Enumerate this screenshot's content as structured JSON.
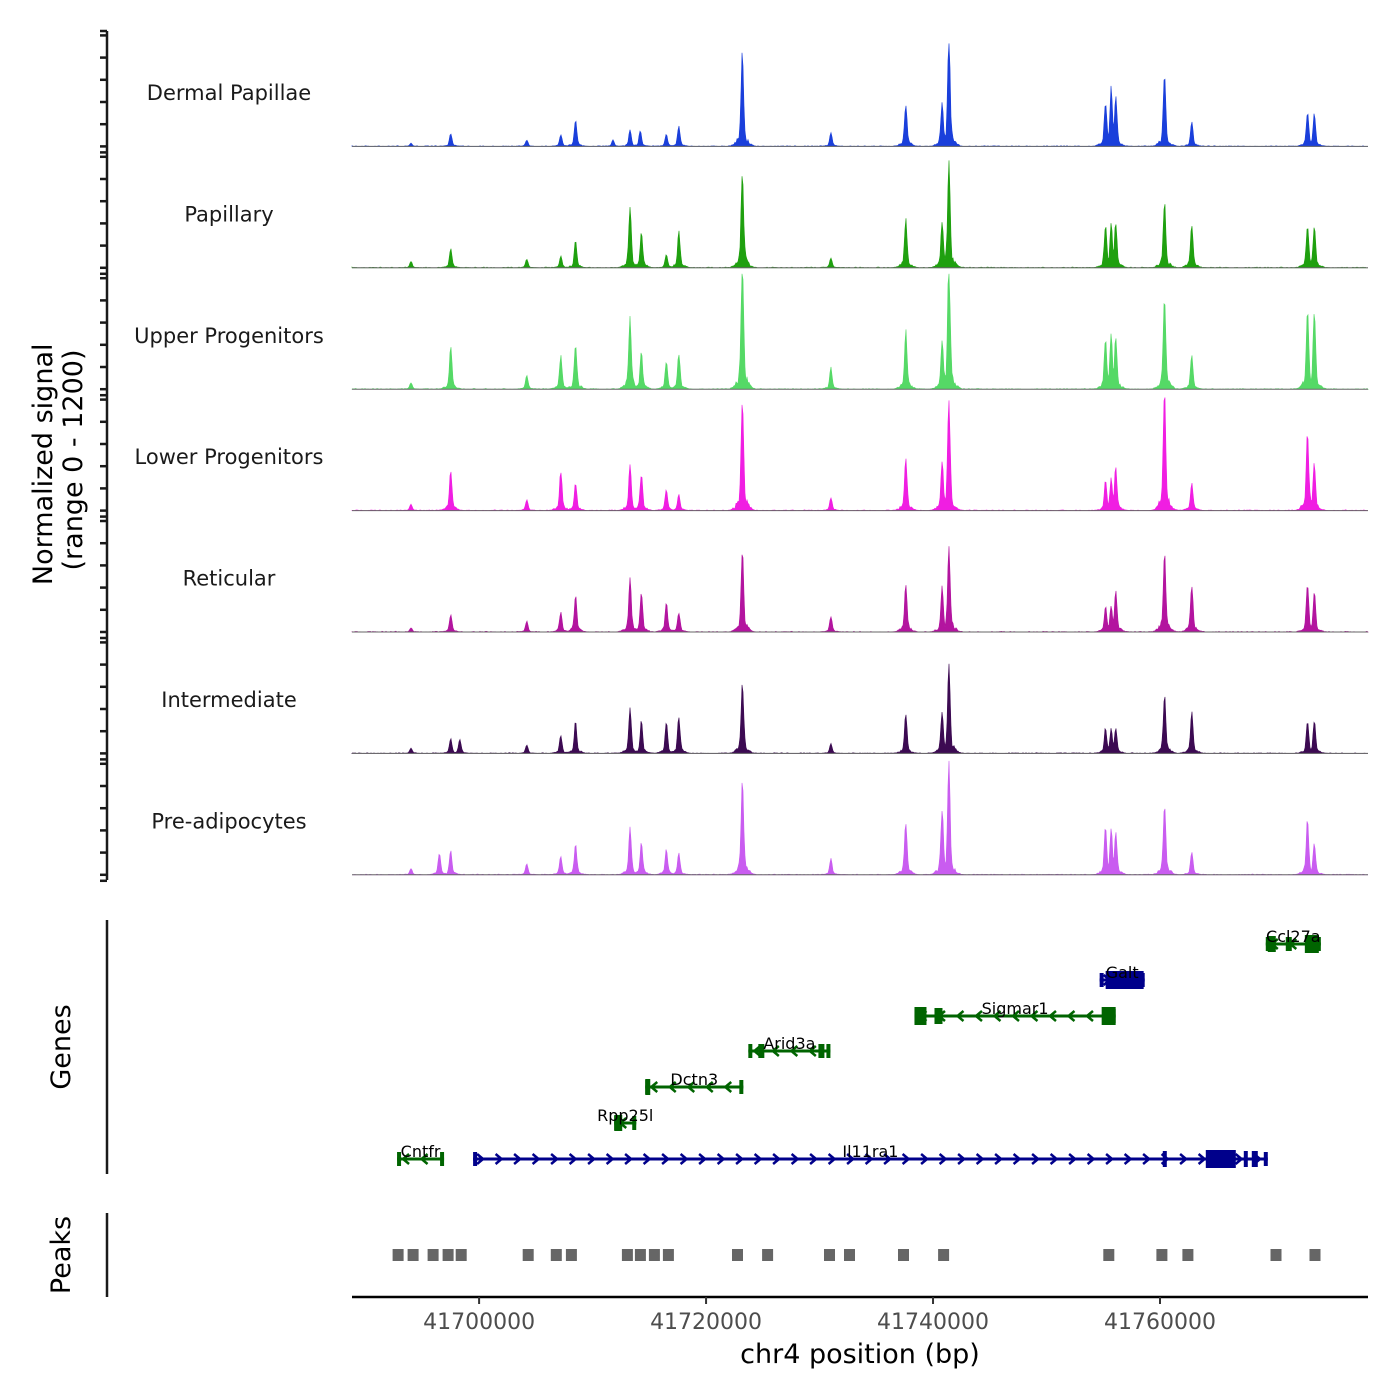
{
  "chart_data": {
    "type": "area",
    "title": "",
    "xlabel": "chr4 position (bp)",
    "ylabel": "Normalized signal\n(range 0 - 1200)",
    "ylabel_lines": [
      "Normalized signal",
      "(range 0 - 1200)"
    ],
    "ylim": [
      0,
      1200
    ],
    "xlim": [
      41688800,
      41778330
    ],
    "x_ticks": [
      41700000,
      41720000,
      41740000,
      41760000
    ],
    "x_tick_labels": [
      "41700000",
      "41720000",
      "41740000",
      "41760000"
    ],
    "chromosome": "chr4",
    "coverage_tracks": [
      {
        "name": "Dermal Papillae",
        "color": "#1a3fdb",
        "peaks": [
          [
            41694000,
            30
          ],
          [
            41697500,
            120
          ],
          [
            41704200,
            60
          ],
          [
            41707200,
            110
          ],
          [
            41708500,
            240
          ],
          [
            41711800,
            60
          ],
          [
            41713300,
            150
          ],
          [
            41714200,
            150
          ],
          [
            41716500,
            110
          ],
          [
            41717600,
            190
          ],
          [
            41723200,
            880
          ],
          [
            41731000,
            130
          ],
          [
            41737600,
            390
          ],
          [
            41740800,
            400
          ],
          [
            41741400,
            1000
          ],
          [
            41755200,
            420
          ],
          [
            41755700,
            550
          ],
          [
            41756100,
            470
          ],
          [
            41760400,
            650
          ],
          [
            41762800,
            230
          ],
          [
            41773000,
            310
          ],
          [
            41773600,
            310
          ]
        ]
      },
      {
        "name": "Papillary",
        "color": "#1fa00f",
        "peaks": [
          [
            41694000,
            60
          ],
          [
            41697500,
            180
          ],
          [
            41704200,
            80
          ],
          [
            41707200,
            110
          ],
          [
            41708500,
            250
          ],
          [
            41713300,
            560
          ],
          [
            41714300,
            330
          ],
          [
            41716500,
            130
          ],
          [
            41717600,
            340
          ],
          [
            41723200,
            910
          ],
          [
            41731000,
            90
          ],
          [
            41737600,
            450
          ],
          [
            41740800,
            440
          ],
          [
            41741400,
            990
          ],
          [
            41755200,
            400
          ],
          [
            41755700,
            420
          ],
          [
            41756100,
            420
          ],
          [
            41760400,
            610
          ],
          [
            41762800,
            400
          ],
          [
            41773000,
            390
          ],
          [
            41773600,
            390
          ]
        ]
      },
      {
        "name": "Upper Progenitors",
        "color": "#55d966",
        "peaks": [
          [
            41694000,
            60
          ],
          [
            41697500,
            390
          ],
          [
            41704200,
            130
          ],
          [
            41707200,
            310
          ],
          [
            41708500,
            420
          ],
          [
            41713300,
            660
          ],
          [
            41714300,
            340
          ],
          [
            41716500,
            250
          ],
          [
            41717600,
            330
          ],
          [
            41723200,
            1200
          ],
          [
            41731000,
            200
          ],
          [
            41737600,
            540
          ],
          [
            41740800,
            460
          ],
          [
            41741400,
            1200
          ],
          [
            41755200,
            470
          ],
          [
            41755700,
            530
          ],
          [
            41756100,
            500
          ],
          [
            41760400,
            850
          ],
          [
            41762800,
            310
          ],
          [
            41773000,
            730
          ],
          [
            41773600,
            730
          ]
        ]
      },
      {
        "name": "Lower Progenitors",
        "color": "#f01ee2",
        "peaks": [
          [
            41694000,
            60
          ],
          [
            41697500,
            380
          ],
          [
            41704200,
            100
          ],
          [
            41707200,
            370
          ],
          [
            41708500,
            260
          ],
          [
            41713300,
            440
          ],
          [
            41714300,
            340
          ],
          [
            41716500,
            190
          ],
          [
            41717600,
            150
          ],
          [
            41723200,
            1040
          ],
          [
            41731000,
            120
          ],
          [
            41737600,
            500
          ],
          [
            41740800,
            470
          ],
          [
            41741400,
            1030
          ],
          [
            41755200,
            280
          ],
          [
            41755700,
            300
          ],
          [
            41756100,
            410
          ],
          [
            41760400,
            1120
          ],
          [
            41762800,
            260
          ],
          [
            41773000,
            740
          ],
          [
            41773600,
            440
          ]
        ]
      },
      {
        "name": "Reticular",
        "color": "#b3149f",
        "peaks": [
          [
            41694000,
            40
          ],
          [
            41697500,
            160
          ],
          [
            41704200,
            100
          ],
          [
            41707200,
            190
          ],
          [
            41708500,
            350
          ],
          [
            41713300,
            520
          ],
          [
            41714300,
            370
          ],
          [
            41716500,
            270
          ],
          [
            41717600,
            180
          ],
          [
            41723200,
            760
          ],
          [
            41731000,
            140
          ],
          [
            41737600,
            460
          ],
          [
            41740800,
            420
          ],
          [
            41741400,
            810
          ],
          [
            41755200,
            240
          ],
          [
            41755700,
            250
          ],
          [
            41756100,
            400
          ],
          [
            41760400,
            730
          ],
          [
            41762800,
            440
          ],
          [
            41773000,
            440
          ],
          [
            41773600,
            370
          ]
        ]
      },
      {
        "name": "Intermediate",
        "color": "#3c0a52",
        "peaks": [
          [
            41694000,
            50
          ],
          [
            41697500,
            140
          ],
          [
            41698300,
            130
          ],
          [
            41704200,
            80
          ],
          [
            41707200,
            170
          ],
          [
            41708500,
            300
          ],
          [
            41713300,
            440
          ],
          [
            41714300,
            300
          ],
          [
            41716500,
            300
          ],
          [
            41717600,
            340
          ],
          [
            41723200,
            670
          ],
          [
            41731000,
            90
          ],
          [
            41737600,
            380
          ],
          [
            41740800,
            390
          ],
          [
            41741400,
            820
          ],
          [
            41755200,
            240
          ],
          [
            41755700,
            230
          ],
          [
            41756100,
            240
          ],
          [
            41760400,
            540
          ],
          [
            41762800,
            380
          ],
          [
            41773000,
            300
          ],
          [
            41773600,
            300
          ]
        ]
      },
      {
        "name": "Pre-adipocytes",
        "color": "#c95cf0",
        "peaks": [
          [
            41694000,
            60
          ],
          [
            41696500,
            200
          ],
          [
            41697500,
            220
          ],
          [
            41704200,
            100
          ],
          [
            41707200,
            170
          ],
          [
            41708500,
            290
          ],
          [
            41713300,
            430
          ],
          [
            41714300,
            300
          ],
          [
            41716500,
            240
          ],
          [
            41717600,
            200
          ],
          [
            41723200,
            880
          ],
          [
            41731000,
            150
          ],
          [
            41737600,
            490
          ],
          [
            41740800,
            620
          ],
          [
            41741400,
            1030
          ],
          [
            41755200,
            460
          ],
          [
            41755700,
            430
          ],
          [
            41756100,
            400
          ],
          [
            41760400,
            670
          ],
          [
            41762800,
            210
          ],
          [
            41773000,
            520
          ],
          [
            41773600,
            290
          ]
        ]
      }
    ],
    "genes_track_label": "Genes",
    "genes": [
      {
        "name": "Cntfr",
        "start": 41692770,
        "end": 41696913,
        "strand": "-",
        "color": "#006400",
        "row": 0
      },
      {
        "name": "Il11ra1",
        "start": 41699471,
        "end": 41769500,
        "strand": "+",
        "color": "#00008b",
        "row": 0
      },
      {
        "name": "Rpp25l",
        "start": 41711907,
        "end": 41713847,
        "strand": "-",
        "color": "#006400",
        "row": 1
      },
      {
        "name": "Dctn3",
        "start": 41714641,
        "end": 41723284,
        "strand": "-",
        "color": "#006400",
        "row": 2
      },
      {
        "name": "Arid3a",
        "start": 41723725,
        "end": 41730958,
        "strand": "-",
        "color": "#006400",
        "row": 3
      },
      {
        "name": "Sigmar1",
        "start": 41738366,
        "end": 41756094,
        "strand": "-",
        "color": "#006400",
        "row": 4
      },
      {
        "name": "Galt",
        "start": 41754683,
        "end": 41758652,
        "strand": "+",
        "color": "#00008b",
        "row": 5
      },
      {
        "name": "Ccl27a",
        "start": 41769323,
        "end": 41774174,
        "strand": "-",
        "color": "#006400",
        "row": 6
      }
    ],
    "peaks_track_label": "Peaks",
    "peak_color": "#666666",
    "peak_regions": [
      41692860,
      41694180,
      41695950,
      41697270,
      41698420,
      41704330,
      41706800,
      41708130,
      41713070,
      41714210,
      41715450,
      41716680,
      41722770,
      41725420,
      41730880,
      41732640,
      41737400,
      41740930,
      41755490,
      41760170,
      41762460,
      41770220,
      41773660
    ],
    "grid": false
  }
}
